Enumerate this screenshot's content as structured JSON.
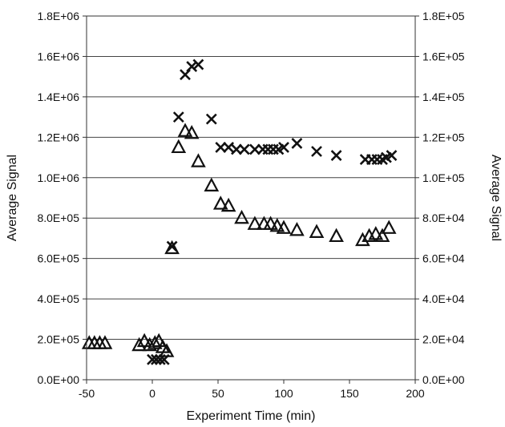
{
  "chart_data": {
    "type": "scatter",
    "title": "",
    "xlabel": "Experiment Time (min)",
    "ylabel_left": "Average Signal",
    "ylabel_right": "Average Signal",
    "xlim": [
      -50,
      200
    ],
    "ylim_left": [
      0,
      1800000
    ],
    "ylim_right": [
      0,
      180000
    ],
    "x_ticks": [
      "-50",
      "0",
      "50",
      "100",
      "150",
      "200"
    ],
    "y_ticks_left": [
      "0.0E+00",
      "2.0E+05",
      "4.0E+05",
      "6.0E+05",
      "8.0E+05",
      "1.0E+06",
      "1.2E+06",
      "1.4E+06",
      "1.6E+06",
      "1.8E+06"
    ],
    "y_ticks_right": [
      "0.0E+00",
      "2.0E+04",
      "4.0E+04",
      "6.0E+04",
      "8.0E+04",
      "1.0E+05",
      "1.2E+05",
      "1.4E+05",
      "1.6E+05",
      "1.8E+05"
    ],
    "grid": "horizontal",
    "legend": "none",
    "series": [
      {
        "marker": "triangle",
        "axis": "left",
        "points": [
          [
            -48,
            180000
          ],
          [
            -44,
            180000
          ],
          [
            -40,
            180000
          ],
          [
            -36,
            180000
          ],
          [
            -10,
            170000
          ],
          [
            -6,
            190000
          ],
          [
            -2,
            170000
          ],
          [
            2,
            180000
          ],
          [
            5,
            190000
          ],
          [
            8,
            160000
          ],
          [
            11,
            140000
          ],
          [
            15,
            650000
          ],
          [
            20,
            1150000
          ],
          [
            25,
            1230000
          ],
          [
            30,
            1220000
          ],
          [
            35,
            1080000
          ],
          [
            45,
            960000
          ],
          [
            52,
            870000
          ],
          [
            58,
            860000
          ],
          [
            68,
            800000
          ],
          [
            78,
            770000
          ],
          [
            85,
            770000
          ],
          [
            90,
            770000
          ],
          [
            95,
            760000
          ],
          [
            100,
            750000
          ],
          [
            110,
            740000
          ],
          [
            125,
            730000
          ],
          [
            140,
            710000
          ],
          [
            160,
            690000
          ],
          [
            165,
            710000
          ],
          [
            170,
            720000
          ],
          [
            175,
            710000
          ],
          [
            180,
            750000
          ]
        ]
      },
      {
        "marker": "x",
        "axis": "right",
        "points": [
          [
            0,
            10000
          ],
          [
            3,
            10000
          ],
          [
            6,
            10000
          ],
          [
            9,
            10000
          ],
          [
            15,
            66000
          ],
          [
            20,
            130000
          ],
          [
            25,
            151000
          ],
          [
            30,
            155000
          ],
          [
            35,
            156000
          ],
          [
            45,
            129000
          ],
          [
            52,
            115000
          ],
          [
            58,
            115000
          ],
          [
            64,
            114000
          ],
          [
            70,
            114000
          ],
          [
            78,
            114000
          ],
          [
            84,
            114000
          ],
          [
            88,
            114000
          ],
          [
            92,
            114000
          ],
          [
            96,
            114000
          ],
          [
            100,
            115000
          ],
          [
            110,
            117000
          ],
          [
            125,
            113000
          ],
          [
            140,
            111000
          ],
          [
            162,
            109000
          ],
          [
            167,
            109000
          ],
          [
            171,
            109000
          ],
          [
            175,
            109000
          ],
          [
            178,
            110000
          ],
          [
            182,
            111000
          ]
        ]
      }
    ]
  }
}
